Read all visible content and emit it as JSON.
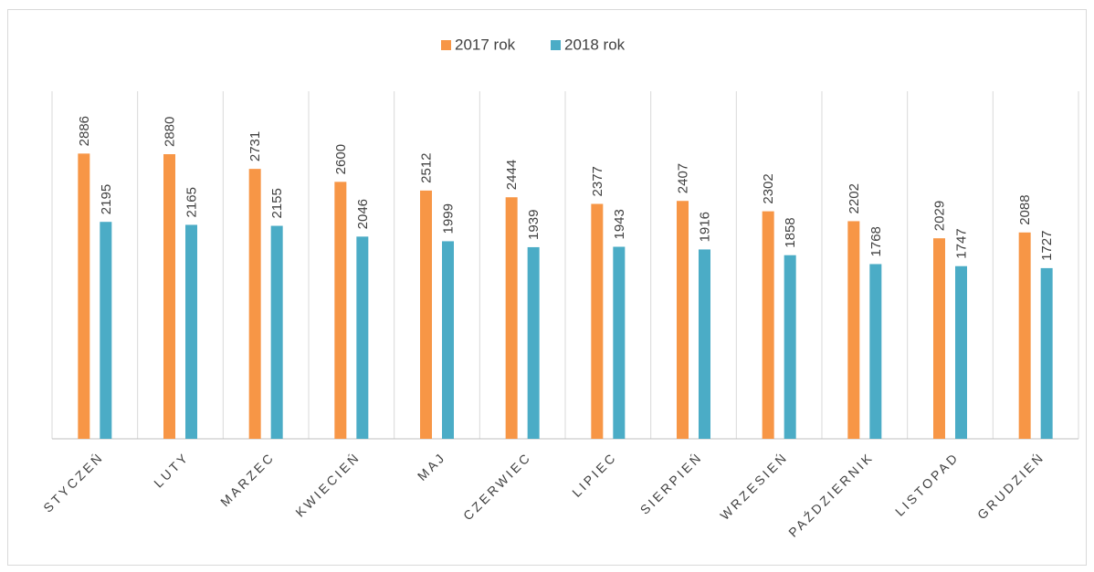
{
  "chart_data": {
    "type": "bar",
    "categories": [
      "STYCZEŃ",
      "LUTY",
      "MARZEC",
      "KWIECIEŃ",
      "MAJ",
      "CZERWIEC",
      "LIPIEC",
      "SIERPIEŃ",
      "WRZESIEŃ",
      "PAŹDZIERNIK",
      "LISTOPAD",
      "GRUDZIEŃ"
    ],
    "series": [
      {
        "name": "2017 rok",
        "color": "#f79646",
        "label_color": "#000000",
        "values": [
          2886,
          2880,
          2731,
          2600,
          2512,
          2444,
          2377,
          2407,
          2302,
          2202,
          2029,
          2088
        ]
      },
      {
        "name": "2018 rok",
        "color": "#4bacc6",
        "label_color": "#1f3864",
        "values": [
          2195,
          2165,
          2155,
          2046,
          1999,
          1939,
          1943,
          1916,
          1858,
          1768,
          1747,
          1727
        ]
      }
    ],
    "ylim": [
      0,
      3000
    ],
    "legend": "top"
  }
}
